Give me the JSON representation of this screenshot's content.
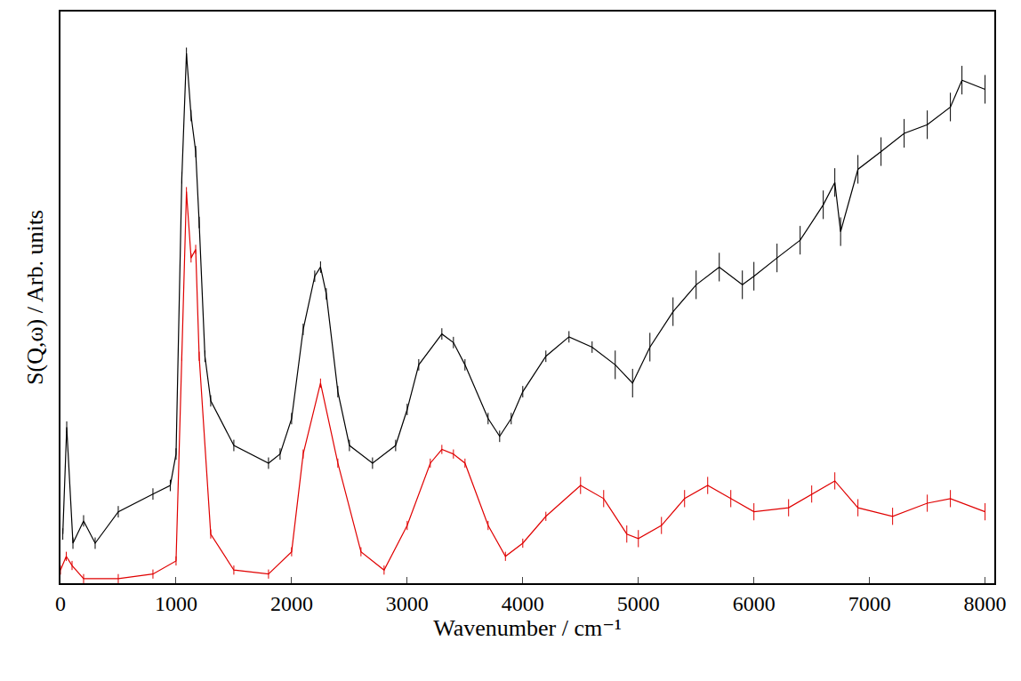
{
  "chart_data": {
    "type": "line",
    "x_label": "Wavenumber / cm⁻¹",
    "y_label": "S(Q,ω) / Arb. units",
    "xlim": [
      0,
      8080
    ],
    "xticks": [
      0,
      1000,
      2000,
      3000,
      4000,
      5000,
      6000,
      7000,
      8000
    ],
    "ylim": [
      0,
      1
    ],
    "yticks": [],
    "tick_labels": "x",
    "grid": false,
    "series": [
      {
        "color": "#000000",
        "x": [
          20,
          54,
          108,
          200,
          300,
          500,
          800,
          950,
          1000,
          1050,
          1090,
          1130,
          1170,
          1200,
          1250,
          1300,
          1500,
          1800,
          1900,
          2000,
          2100,
          2200,
          2250,
          2300,
          2400,
          2500,
          2700,
          2900,
          3000,
          3100,
          3300,
          3400,
          3500,
          3700,
          3800,
          3900,
          4000,
          4200,
          4400,
          4600,
          4800,
          4950,
          5100,
          5300,
          5500,
          5700,
          5900,
          6000,
          6200,
          6400,
          6600,
          6700,
          6750,
          6900,
          7100,
          7300,
          7500,
          7700,
          7800,
          8000
        ],
        "values": [
          0.086,
          0.273,
          0.07,
          0.109,
          0.07,
          0.125,
          0.156,
          0.171,
          0.226,
          0.709,
          0.927,
          0.818,
          0.755,
          0.631,
          0.397,
          0.319,
          0.241,
          0.21,
          0.226,
          0.288,
          0.444,
          0.537,
          0.553,
          0.506,
          0.335,
          0.241,
          0.21,
          0.241,
          0.304,
          0.382,
          0.436,
          0.421,
          0.382,
          0.288,
          0.257,
          0.288,
          0.335,
          0.397,
          0.431,
          0.413,
          0.382,
          0.35,
          0.413,
          0.475,
          0.522,
          0.553,
          0.522,
          0.537,
          0.569,
          0.6,
          0.662,
          0.701,
          0.615,
          0.724,
          0.755,
          0.787,
          0.802,
          0.833,
          0.88,
          0.864
        ],
        "errors": [
          0.01,
          0.01,
          0.01,
          0.01,
          0.01,
          0.01,
          0.01,
          0.01,
          0.01,
          0.01,
          0.01,
          0.01,
          0.01,
          0.01,
          0.01,
          0.01,
          0.01,
          0.01,
          0.01,
          0.01,
          0.01,
          0.01,
          0.01,
          0.01,
          0.01,
          0.01,
          0.01,
          0.01,
          0.01,
          0.01,
          0.01,
          0.01,
          0.01,
          0.01,
          0.01,
          0.01,
          0.01,
          0.01,
          0.01,
          0.01,
          0.025,
          0.025,
          0.025,
          0.025,
          0.025,
          0.025,
          0.025,
          0.025,
          0.025,
          0.025,
          0.025,
          0.025,
          0.025,
          0.025,
          0.025,
          0.025,
          0.025,
          0.025,
          0.025,
          0.025
        ]
      },
      {
        "color": "#e00000",
        "x": [
          0,
          50,
          100,
          200,
          500,
          800,
          1000,
          1050,
          1090,
          1130,
          1170,
          1200,
          1300,
          1500,
          1800,
          2000,
          2100,
          2250,
          2400,
          2600,
          2800,
          3000,
          3200,
          3300,
          3400,
          3500,
          3700,
          3850,
          4000,
          4200,
          4500,
          4700,
          4900,
          5000,
          5200,
          5400,
          5600,
          5800,
          6000,
          6300,
          6500,
          6700,
          6900,
          7200,
          7500,
          7700,
          8000
        ],
        "values": [
          0.023,
          0.047,
          0.031,
          0.008,
          0.008,
          0.016,
          0.039,
          0.397,
          0.685,
          0.569,
          0.584,
          0.397,
          0.086,
          0.023,
          0.016,
          0.055,
          0.226,
          0.35,
          0.21,
          0.055,
          0.023,
          0.101,
          0.21,
          0.234,
          0.226,
          0.21,
          0.101,
          0.047,
          0.07,
          0.117,
          0.171,
          0.148,
          0.086,
          0.078,
          0.101,
          0.148,
          0.171,
          0.148,
          0.125,
          0.132,
          0.156,
          0.179,
          0.132,
          0.117,
          0.14,
          0.148,
          0.125
        ],
        "errors": [
          0.008,
          0.008,
          0.008,
          0.008,
          0.008,
          0.008,
          0.008,
          0.008,
          0.008,
          0.008,
          0.008,
          0.008,
          0.008,
          0.008,
          0.008,
          0.008,
          0.008,
          0.008,
          0.008,
          0.008,
          0.008,
          0.008,
          0.008,
          0.008,
          0.008,
          0.008,
          0.008,
          0.008,
          0.008,
          0.008,
          0.015,
          0.015,
          0.015,
          0.015,
          0.015,
          0.015,
          0.015,
          0.015,
          0.015,
          0.015,
          0.015,
          0.015,
          0.015,
          0.015,
          0.015,
          0.015,
          0.015
        ]
      }
    ]
  }
}
